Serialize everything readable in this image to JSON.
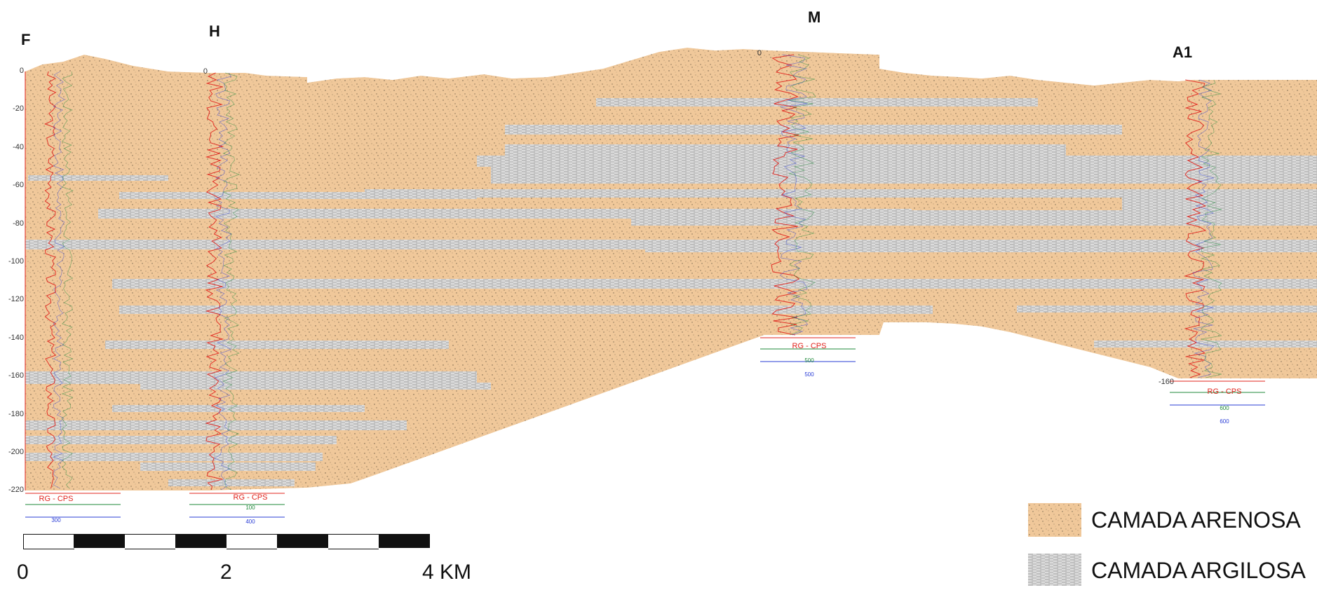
{
  "wells": [
    {
      "id": "F",
      "label": "F",
      "top_depth": "0",
      "log_title": "RG - CPS",
      "log_sub1": "",
      "log_sub2": "300"
    },
    {
      "id": "H",
      "label": "H",
      "top_depth": "0",
      "log_title": "RG - CPS",
      "log_sub1": "100",
      "log_sub2": "400"
    },
    {
      "id": "M",
      "label": "M",
      "top_depth": "0",
      "log_title": "RG - CPS",
      "log_sub1": "500",
      "log_sub2": "500"
    },
    {
      "id": "A1",
      "label": "A1",
      "top_depth": "",
      "log_title": "RG - CPS",
      "log_sub1": "600",
      "log_sub2": "600"
    }
  ],
  "depth_axis": {
    "labels": [
      "0",
      "-20",
      "-40",
      "-60",
      "-80",
      "-100",
      "-120",
      "-140",
      "-160",
      "-180",
      "-200",
      "-220"
    ],
    "a1_bottom_label": "-160"
  },
  "scale_bar": {
    "labels": [
      "0",
      "2",
      "4 KM"
    ]
  },
  "legend": {
    "items": [
      {
        "label": "CAMADA ARENOSA",
        "pattern": "sand"
      },
      {
        "label": "CAMADA ARGILOSA",
        "pattern": "clay"
      }
    ]
  },
  "colors": {
    "sand": "#f0c89a",
    "clay": "#d9d9d9",
    "log_red": "#e0241d",
    "log_green": "#1f8a3a",
    "log_blue": "#2a3dd6"
  }
}
